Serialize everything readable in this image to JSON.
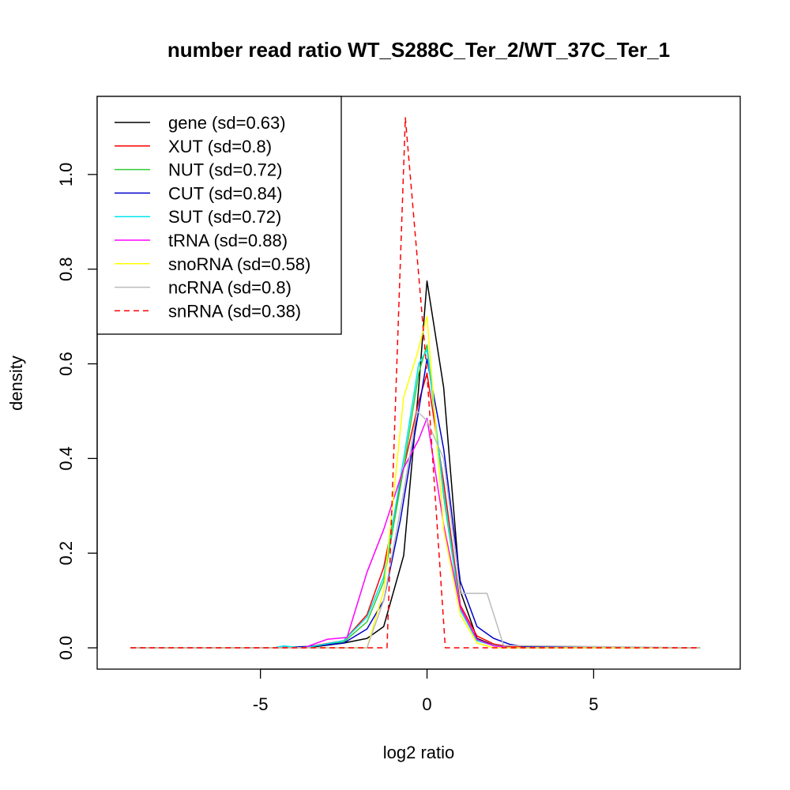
{
  "chart_data": {
    "type": "line",
    "title": "number read ratio WT_S288C_Ter_2/WT_37C_Ter_1",
    "xlabel": "log2 ratio",
    "ylabel": "density",
    "xlim": [
      -9.9,
      9.4
    ],
    "ylim": [
      -0.045,
      1.165
    ],
    "x_ticks": [
      -5,
      0,
      5
    ],
    "x_tick_labels": [
      "-5",
      "0",
      "5"
    ],
    "y_ticks": [
      0.0,
      0.2,
      0.4,
      0.6,
      0.8,
      1.0
    ],
    "y_tick_labels": [
      "0.0",
      "0.2",
      "0.4",
      "0.6",
      "0.8",
      "1.0"
    ],
    "legend_position": "top-left",
    "grid": false,
    "series": [
      {
        "name": "gene (sd=0.63)",
        "color": "#000000",
        "dash": "solid",
        "points": [
          [
            -8.9,
            0
          ],
          [
            -4.5,
            0
          ],
          [
            -3.5,
            0.001
          ],
          [
            -2.5,
            0.01
          ],
          [
            -1.8,
            0.02
          ],
          [
            -1.3,
            0.045
          ],
          [
            -0.7,
            0.195
          ],
          [
            -0.25,
            0.55
          ],
          [
            0,
            0.775
          ],
          [
            0.5,
            0.55
          ],
          [
            1.0,
            0.12
          ],
          [
            1.5,
            0.02
          ],
          [
            2.0,
            0.005
          ],
          [
            2.5,
            0
          ],
          [
            8.2,
            0
          ]
        ]
      },
      {
        "name": "XUT (sd=0.8)",
        "color": "#ff0000",
        "dash": "solid",
        "points": [
          [
            -8.9,
            0
          ],
          [
            -4.5,
            0
          ],
          [
            -3.5,
            0.003
          ],
          [
            -2.5,
            0.015
          ],
          [
            -1.8,
            0.07
          ],
          [
            -1.3,
            0.17
          ],
          [
            -0.7,
            0.38
          ],
          [
            -0.25,
            0.52
          ],
          [
            0,
            0.58
          ],
          [
            0.5,
            0.35
          ],
          [
            1.0,
            0.09
          ],
          [
            1.5,
            0.025
          ],
          [
            2.0,
            0.008
          ],
          [
            2.5,
            0.002
          ],
          [
            8.2,
            0
          ]
        ]
      },
      {
        "name": "NUT (sd=0.72)",
        "color": "#33cc33",
        "dash": "solid",
        "points": [
          [
            -8.9,
            0
          ],
          [
            -4.5,
            0
          ],
          [
            -3.5,
            0.003
          ],
          [
            -2.5,
            0.012
          ],
          [
            -1.8,
            0.055
          ],
          [
            -1.3,
            0.14
          ],
          [
            -0.7,
            0.38
          ],
          [
            -0.25,
            0.58
          ],
          [
            0,
            0.64
          ],
          [
            0.5,
            0.32
          ],
          [
            1.0,
            0.08
          ],
          [
            1.5,
            0.015
          ],
          [
            2.0,
            0.005
          ],
          [
            2.5,
            0
          ],
          [
            8.2,
            0
          ]
        ]
      },
      {
        "name": "CUT (sd=0.84)",
        "color": "#0000cc",
        "dash": "solid",
        "points": [
          [
            -8.9,
            0
          ],
          [
            -4.5,
            0
          ],
          [
            -3.5,
            0.003
          ],
          [
            -2.5,
            0.01
          ],
          [
            -1.8,
            0.04
          ],
          [
            -1.3,
            0.1
          ],
          [
            -0.8,
            0.27
          ],
          [
            -0.3,
            0.48
          ],
          [
            0,
            0.61
          ],
          [
            0.5,
            0.42
          ],
          [
            1.0,
            0.14
          ],
          [
            1.5,
            0.045
          ],
          [
            2.0,
            0.02
          ],
          [
            2.5,
            0.007
          ],
          [
            3.0,
            0.002
          ],
          [
            8.2,
            0
          ]
        ]
      },
      {
        "name": "SUT (sd=0.72)",
        "color": "#00e5ee",
        "dash": "solid",
        "points": [
          [
            -8.9,
            0
          ],
          [
            -4.6,
            0
          ],
          [
            -4.3,
            0.004
          ],
          [
            -3.8,
            0
          ],
          [
            -3.5,
            0.002
          ],
          [
            -2.5,
            0.015
          ],
          [
            -1.8,
            0.065
          ],
          [
            -1.3,
            0.15
          ],
          [
            -0.7,
            0.4
          ],
          [
            -0.25,
            0.6
          ],
          [
            0,
            0.63
          ],
          [
            0.5,
            0.33
          ],
          [
            1.0,
            0.08
          ],
          [
            1.5,
            0.015
          ],
          [
            2.0,
            0.005
          ],
          [
            2.5,
            0
          ],
          [
            8.2,
            0
          ]
        ]
      },
      {
        "name": "tRNA (sd=0.88)",
        "color": "#ff00ff",
        "dash": "solid",
        "points": [
          [
            -8.9,
            0
          ],
          [
            -3.7,
            0
          ],
          [
            -3.0,
            0.018
          ],
          [
            -2.4,
            0.022
          ],
          [
            -1.8,
            0.16
          ],
          [
            -1.3,
            0.25
          ],
          [
            -0.7,
            0.38
          ],
          [
            -0.25,
            0.44
          ],
          [
            0,
            0.485
          ],
          [
            0.5,
            0.26
          ],
          [
            1.0,
            0.085
          ],
          [
            1.5,
            0.018
          ],
          [
            2.0,
            0.004
          ],
          [
            2.5,
            0
          ],
          [
            8.2,
            0
          ]
        ]
      },
      {
        "name": "snoRNA (sd=0.58)",
        "color": "#ffff00",
        "dash": "solid",
        "points": [
          [
            -8.9,
            0
          ],
          [
            -1.8,
            0
          ],
          [
            -1.3,
            0.12
          ],
          [
            -0.7,
            0.53
          ],
          [
            -0.3,
            0.62
          ],
          [
            0,
            0.7
          ],
          [
            0.5,
            0.25
          ],
          [
            1.0,
            0.07
          ],
          [
            1.5,
            0.01
          ],
          [
            2.0,
            0
          ],
          [
            8.2,
            0
          ]
        ]
      },
      {
        "name": "ncRNA (sd=0.8)",
        "color": "#bbbbbb",
        "dash": "solid",
        "points": [
          [
            -8.9,
            0
          ],
          [
            -1.8,
            0
          ],
          [
            -1.3,
            0.1
          ],
          [
            -0.7,
            0.33
          ],
          [
            -0.3,
            0.5
          ],
          [
            0,
            0.48
          ],
          [
            0.5,
            0.4
          ],
          [
            1.0,
            0.115
          ],
          [
            1.8,
            0.115
          ],
          [
            2.3,
            0.005
          ],
          [
            8.2,
            0
          ]
        ]
      },
      {
        "name": "snRNA (sd=0.38)",
        "color": "#ff0000",
        "dash": "dashed",
        "points": [
          [
            -8.9,
            0
          ],
          [
            -1.2,
            0
          ],
          [
            -0.65,
            1.12
          ],
          [
            0,
            0.58
          ],
          [
            0.55,
            0
          ],
          [
            8.2,
            0
          ]
        ]
      }
    ]
  }
}
